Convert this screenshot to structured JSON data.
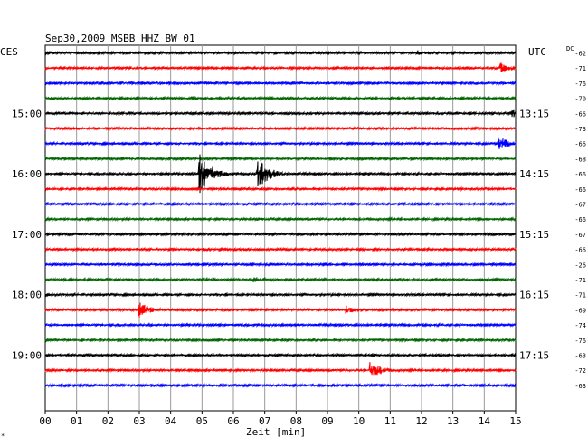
{
  "chart_data": {
    "type": "line",
    "title": "Sep30,2009   MSBB HHZ BW 01",
    "left_axis_label": "CES",
    "right_axis_label": "UTC",
    "dc_label": "DC",
    "xlabel": "Zeit [min]",
    "x_ticks": [
      "00",
      "01",
      "02",
      "03",
      "04",
      "05",
      "06",
      "07",
      "08",
      "09",
      "10",
      "11",
      "12",
      "13",
      "14",
      "15"
    ],
    "xlim": [
      0,
      15
    ],
    "grid": true,
    "colors": [
      "#000000",
      "#ff0000",
      "#0000ff",
      "#006400"
    ],
    "left_time_labels": [
      {
        "row": 4,
        "label": "15:00"
      },
      {
        "row": 8,
        "label": "16:00"
      },
      {
        "row": 12,
        "label": "17:00"
      },
      {
        "row": 16,
        "label": "18:00"
      },
      {
        "row": 20,
        "label": "19:00"
      }
    ],
    "right_time_labels": [
      {
        "row": 4,
        "label": "13:15"
      },
      {
        "row": 8,
        "label": "14:15"
      },
      {
        "row": 12,
        "label": "15:15"
      },
      {
        "row": 16,
        "label": "16:15"
      },
      {
        "row": 20,
        "label": "17:15"
      }
    ],
    "dc_offsets": [
      "-62",
      "-71",
      "-76",
      "-70",
      "-66",
      "-73",
      "-66",
      "-68",
      "-66",
      "-66",
      "-67",
      "-66",
      "-67",
      "-66",
      "-26",
      "-71",
      "-71",
      "-69",
      "-74",
      "-76",
      "-63",
      "-72",
      "-63"
    ],
    "events": [
      {
        "row": 0,
        "x": 11.9,
        "amp": 0.5
      },
      {
        "row": 1,
        "x": 14.55,
        "amp": 1.0
      },
      {
        "row": 4,
        "x": 14.9,
        "amp": 0.9
      },
      {
        "row": 6,
        "x": 14.5,
        "amp": 1.3
      },
      {
        "row": 8,
        "x": 4.95,
        "amp": 4.0
      },
      {
        "row": 8,
        "x": 6.8,
        "amp": 3.0
      },
      {
        "row": 9,
        "x": 13.2,
        "amp": 0.3
      },
      {
        "row": 11,
        "x": 6.8,
        "amp": 0.4
      },
      {
        "row": 15,
        "x": 0.55,
        "amp": 0.5
      },
      {
        "row": 15,
        "x": 6.65,
        "amp": 0.6
      },
      {
        "row": 17,
        "x": 3.0,
        "amp": 1.5
      },
      {
        "row": 17,
        "x": 9.6,
        "amp": 0.8
      },
      {
        "row": 21,
        "x": 10.4,
        "amp": 1.6
      },
      {
        "row": 22,
        "x": 5.3,
        "amp": 0.3
      }
    ]
  }
}
